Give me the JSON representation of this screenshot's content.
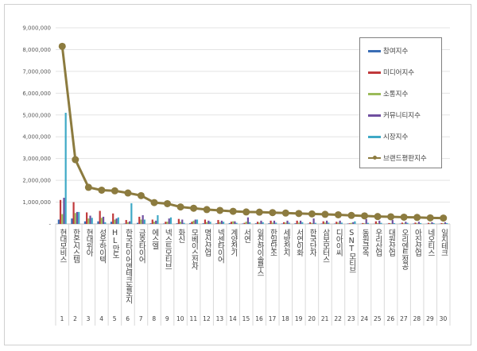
{
  "chart_data": {
    "type": "bar",
    "title": "",
    "xlabel": "",
    "ylabel": "",
    "ylim": [
      0,
      9000000
    ],
    "yticks": [
      "-",
      "1,000,000",
      "2,000,000",
      "3,000,000",
      "4,000,000",
      "5,000,000",
      "6,000,000",
      "7,000,000",
      "8,000,000",
      "9,000,000"
    ],
    "grid": true,
    "legend_position": "top-right",
    "x": [
      "1",
      "2",
      "3",
      "4",
      "5",
      "6",
      "7",
      "8",
      "9",
      "10",
      "11",
      "12",
      "13",
      "14",
      "15",
      "16",
      "17",
      "18",
      "19",
      "20",
      "21",
      "22",
      "23",
      "24",
      "25",
      "26",
      "27",
      "28",
      "29",
      "30"
    ],
    "categories": [
      "현대모비스",
      "한온시스템",
      "현대위아",
      "성우하이텍",
      "HL만도",
      "한국타이어앤테크놀로지",
      "금호타이어",
      "에스엘",
      "넥스트모티브",
      "화신",
      "모베이스전자",
      "명신산업",
      "넥센타이어",
      "계양전기",
      "서연",
      "일진하이솔루스",
      "한일단조",
      "세방전지",
      "서연이화",
      "한국단자",
      "삼보모터스",
      "디아이씨",
      "SNT모티브",
      "동원금속",
      "우리산업",
      "대원산업",
      "오리엔트정공",
      "아진산업",
      "네오티스",
      "일지테크"
    ],
    "series": [
      {
        "name": "참여지수",
        "type": "bar",
        "color": "#3a6db5",
        "values": [
          200000,
          250000,
          120000,
          120000,
          100000,
          20000,
          50000,
          30000,
          20000,
          30000,
          40000,
          30000,
          30000,
          40000,
          20000,
          30000,
          30000,
          20000,
          30000,
          20000,
          20000,
          20000,
          20000,
          10000,
          10000,
          10000,
          20000,
          20000,
          10000,
          10000
        ]
      },
      {
        "name": "미디어지수",
        "type": "bar",
        "color": "#c0393b",
        "values": [
          1100000,
          1000000,
          530000,
          600000,
          480000,
          180000,
          330000,
          200000,
          100000,
          230000,
          100000,
          200000,
          180000,
          100000,
          50000,
          100000,
          150000,
          80000,
          150000,
          80000,
          120000,
          100000,
          30000,
          40000,
          120000,
          40000,
          60000,
          60000,
          50000,
          40000
        ]
      },
      {
        "name": "소통지수",
        "type": "bar",
        "color": "#9bbb59",
        "values": [
          450000,
          500000,
          250000,
          280000,
          200000,
          80000,
          200000,
          100000,
          100000,
          100000,
          150000,
          80000,
          80000,
          120000,
          100000,
          60000,
          60000,
          60000,
          60000,
          40000,
          60000,
          60000,
          50000,
          30000,
          40000,
          30000,
          30000,
          30000,
          30000,
          30000
        ]
      },
      {
        "name": "커뮤니티지수",
        "type": "bar",
        "color": "#6f4fa0",
        "values": [
          1200000,
          550000,
          380000,
          330000,
          250000,
          120000,
          400000,
          150000,
          250000,
          200000,
          200000,
          150000,
          150000,
          120000,
          300000,
          150000,
          150000,
          150000,
          150000,
          250000,
          150000,
          150000,
          80000,
          220000,
          150000,
          180000,
          100000,
          100000,
          80000,
          80000
        ]
      },
      {
        "name": "시장지수",
        "type": "bar",
        "color": "#3fa9c6",
        "values": [
          5100000,
          550000,
          280000,
          80000,
          300000,
          950000,
          200000,
          400000,
          300000,
          50000,
          200000,
          100000,
          100000,
          50000,
          80000,
          80000,
          60000,
          60000,
          80000,
          50000,
          60000,
          60000,
          120000,
          50000,
          50000,
          40000,
          50000,
          40000,
          40000,
          40000
        ]
      },
      {
        "name": "브랜드평판지수",
        "type": "line",
        "color": "#8c7b3f",
        "values": [
          8150000,
          2950000,
          1680000,
          1550000,
          1520000,
          1420000,
          1300000,
          980000,
          930000,
          780000,
          720000,
          660000,
          620000,
          580000,
          550000,
          540000,
          520000,
          500000,
          480000,
          460000,
          440000,
          420000,
          390000,
          370000,
          340000,
          330000,
          310000,
          300000,
          280000,
          270000
        ]
      }
    ]
  }
}
